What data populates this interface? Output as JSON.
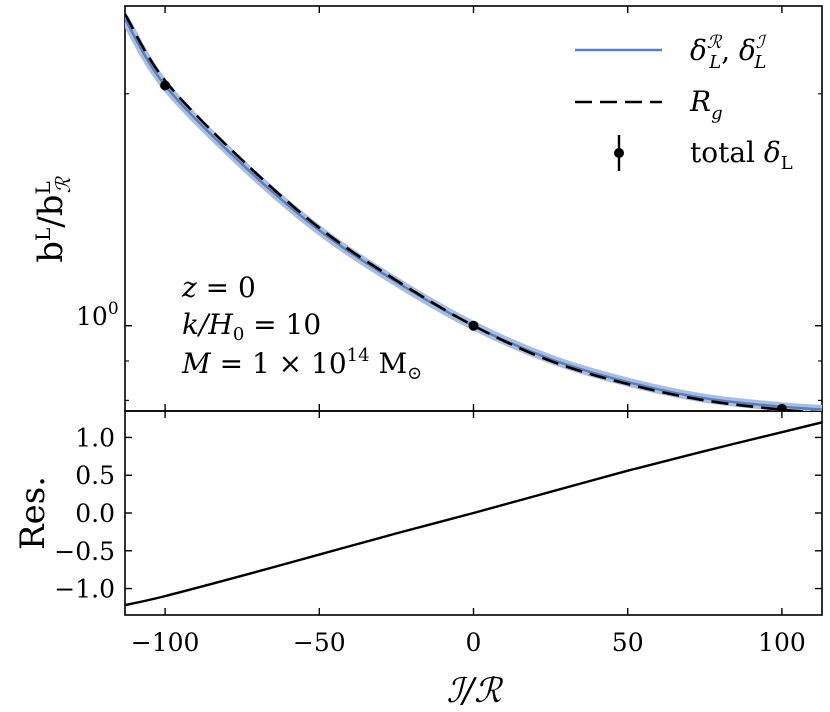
{
  "chart_data": [
    {
      "type": "line",
      "panel": "top",
      "ylabel": "b^L / b^L_R",
      "yscale": "log",
      "xlim": [
        -113,
        113
      ],
      "ylim": [
        0.775,
        2.6
      ],
      "yticks": [
        {
          "value": 1.0,
          "label": "10^0"
        }
      ],
      "series": [
        {
          "name": "δ_L^R, δ_L^I",
          "style": "solid",
          "color": "#5b7db8",
          "band_color": "#a9bedf",
          "x": [
            -100,
            -75,
            -50,
            -25,
            0,
            25,
            50,
            75,
            100
          ],
          "y": [
            2.05,
            1.62,
            1.33,
            1.14,
            1.0,
            0.905,
            0.845,
            0.805,
            0.785
          ]
        },
        {
          "name": "R_g",
          "style": "dashed",
          "color": "#000000",
          "x": [
            -100,
            -75,
            -50,
            -25,
            0,
            25,
            50,
            75,
            100
          ],
          "y": [
            2.08,
            1.64,
            1.34,
            1.145,
            1.0,
            0.9,
            0.84,
            0.8,
            0.778
          ]
        },
        {
          "name": "total δ_L",
          "style": "errorbar",
          "color": "#000000",
          "x": [
            -100,
            0,
            100
          ],
          "y": [
            2.05,
            1.0,
            0.78
          ],
          "yerr": [
            0.02,
            0.012,
            0.006
          ]
        }
      ],
      "legend": [
        {
          "style": "solid",
          "label": "δ_L^R, δ_L^I"
        },
        {
          "style": "dashed",
          "label": "R_g"
        },
        {
          "style": "errorbar",
          "label": "total δ_L"
        }
      ],
      "annotations": [
        "z = 0",
        "k/H_0 = 10",
        "M = 1 × 10^14 M_⊙"
      ]
    },
    {
      "type": "line",
      "panel": "bottom",
      "ylabel": "Res.",
      "xlabel": "I/R",
      "xlim": [
        -113,
        113
      ],
      "ylim": [
        -1.35,
        1.35
      ],
      "yticks": [
        -1.0,
        -0.5,
        0.0,
        0.5,
        1.0
      ],
      "ytick_labels": [
        "−1.0",
        "−0.5",
        "0.0",
        "0.5",
        "1.0"
      ],
      "xticks": [
        -100,
        -50,
        0,
        50,
        100
      ],
      "xtick_labels": [
        "−100",
        "−50",
        "0",
        "50",
        "100"
      ],
      "series": [
        {
          "name": "residual",
          "style": "solid",
          "color": "#000000",
          "x": [
            -113,
            -100,
            -75,
            -50,
            -25,
            0,
            25,
            50,
            75,
            100,
            113
          ],
          "y": [
            -1.22,
            -1.1,
            -0.83,
            -0.55,
            -0.27,
            0.0,
            0.28,
            0.56,
            0.82,
            1.07,
            1.2
          ]
        }
      ]
    }
  ]
}
